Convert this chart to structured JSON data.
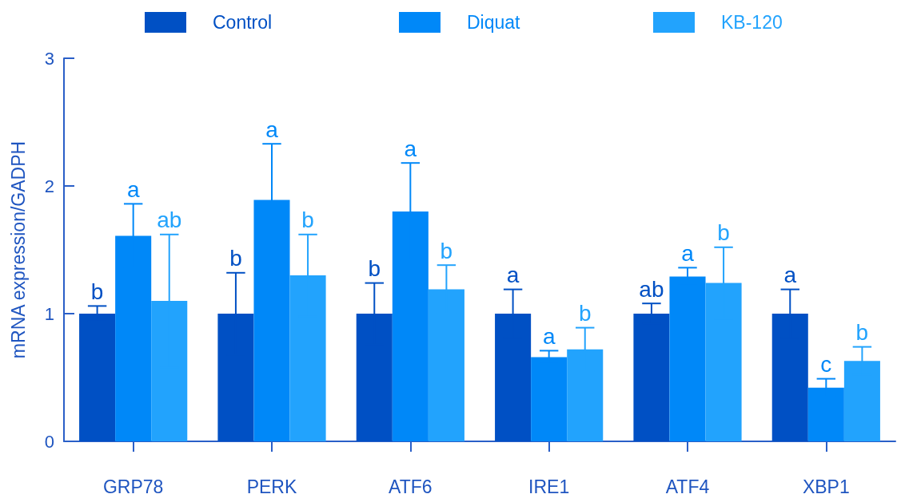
{
  "chart_data": {
    "type": "bar",
    "ylabel": "mRNA expression/GADPH",
    "categories": [
      "GRP78",
      "PERK",
      "ATF6",
      "IRE1",
      "ATF4",
      "XBP1"
    ],
    "series": [
      {
        "name": "Control",
        "color": "#0050c4",
        "values": [
          1.0,
          1.0,
          1.0,
          1.0,
          1.0,
          1.0
        ],
        "errors": [
          0.06,
          0.32,
          0.24,
          0.19,
          0.08,
          0.19
        ],
        "value_labels": [
          "b",
          "b",
          "b",
          "a",
          "ab",
          "a"
        ]
      },
      {
        "name": "Diquat",
        "color": "#0088f8",
        "values": [
          1.61,
          1.89,
          1.8,
          0.66,
          1.29,
          0.42
        ],
        "errors": [
          0.25,
          0.44,
          0.38,
          0.05,
          0.07,
          0.07
        ],
        "value_labels": [
          "a",
          "a",
          "a",
          "a",
          "a",
          "c"
        ]
      },
      {
        "name": "KB-120",
        "color": "#22a3fd",
        "values": [
          1.1,
          1.3,
          1.19,
          0.72,
          1.24,
          0.63
        ],
        "errors": [
          0.52,
          0.32,
          0.19,
          0.17,
          0.28,
          0.11
        ],
        "value_labels": [
          "ab",
          "b",
          "b",
          "b",
          "b",
          "b"
        ]
      }
    ],
    "ylim": [
      0,
      3
    ],
    "yticks": [
      0,
      1,
      2,
      3
    ],
    "legend": "top"
  }
}
